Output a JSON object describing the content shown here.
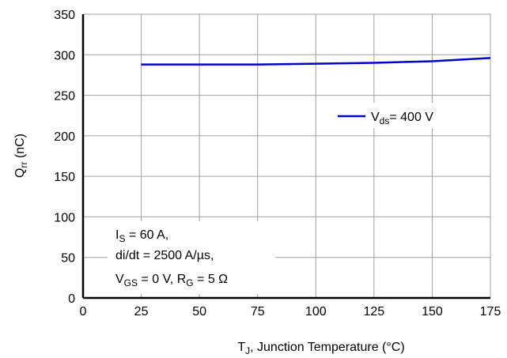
{
  "chart_data": {
    "type": "line",
    "x_label": {
      "main": "T",
      "sub": "J",
      "rest": ", Junction Temperature (°C)"
    },
    "y_label": {
      "main": "Q",
      "sub": "rr",
      "rest": " (nC)"
    },
    "xlim": [
      0,
      175
    ],
    "ylim": [
      0,
      350
    ],
    "x_ticks": [
      0,
      25,
      50,
      75,
      100,
      125,
      150,
      175
    ],
    "y_ticks": [
      0,
      50,
      100,
      150,
      200,
      250,
      300,
      350
    ],
    "grid": true,
    "legend_position": "right",
    "series": [
      {
        "name": {
          "main": "V",
          "sub": "ds",
          "rest": "= 400 V"
        },
        "color": "#0000cc",
        "x": [
          25,
          50,
          75,
          100,
          125,
          150,
          175
        ],
        "y": [
          288,
          288,
          288,
          289,
          290,
          292,
          296
        ]
      }
    ],
    "conditions": {
      "line1": {
        "main": "I",
        "sub": "S",
        "rest": " = 60 A,"
      },
      "line2": "di/dt = 2500 A/µs,",
      "line3": {
        "a": "V",
        "a_sub": "GS",
        "b": " = 0 V, R",
        "b_sub": "G",
        "c": " = 5 Ω"
      }
    }
  }
}
